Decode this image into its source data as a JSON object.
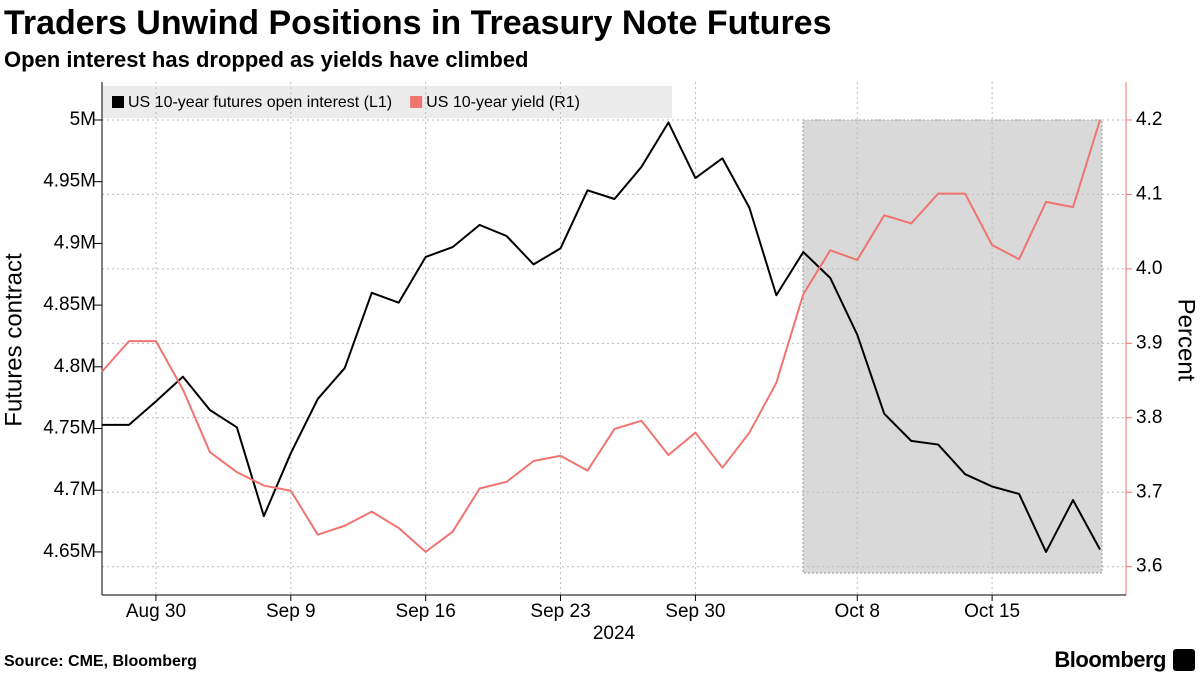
{
  "chart_data": {
    "type": "line",
    "title": "Traders Unwind Positions in Treasury Note Futures",
    "subtitle": "Open interest has dropped as yields have climbed",
    "source": "Source: CME, Bloomberg",
    "brand": "Bloomberg",
    "xlabel": "2024",
    "ylabel": "Futures contract",
    "y2label": "Percent",
    "categories": [
      null,
      null,
      "Aug 30",
      null,
      null,
      null,
      null,
      "Sep 9",
      null,
      null,
      null,
      null,
      "Sep 16",
      null,
      null,
      null,
      null,
      "Sep 23",
      null,
      null,
      null,
      null,
      "Sep 30",
      null,
      null,
      null,
      null,
      null,
      "Oct 8",
      null,
      null,
      null,
      null,
      "Oct 15",
      null,
      null,
      null,
      null
    ],
    "series": [
      {
        "name": "US 10-year futures open interest (L1)",
        "color": "#000000",
        "values": [
          4753000,
          4753000,
          4772000,
          4792000,
          4765000,
          4751000,
          4679000,
          4730000,
          4774000,
          4799000,
          4860000,
          4852000,
          4889000,
          4897000,
          4915000,
          4906000,
          4883000,
          4896000,
          4943000,
          4936000,
          4962000,
          4998000,
          4953000,
          4969000,
          4929000,
          4858000,
          4893000,
          4872000,
          4826000,
          4762000,
          4740000,
          4737000,
          4713000,
          4703000,
          4697000,
          4650000,
          4692000,
          4652000
        ]
      },
      {
        "name": "US 10-year yield (R1)",
        "color": "#f07470",
        "axis": "y2",
        "values": [
          3.862,
          3.903,
          3.903,
          3.838,
          3.754,
          3.727,
          3.709,
          3.702,
          3.643,
          3.655,
          3.674,
          3.652,
          3.62,
          3.647,
          3.705,
          3.714,
          3.742,
          3.749,
          3.729,
          3.785,
          3.796,
          3.75,
          3.78,
          3.733,
          3.78,
          3.847,
          3.966,
          4.025,
          4.012,
          4.072,
          4.061,
          4.101,
          4.101,
          4.032,
          4.013,
          4.09,
          4.083,
          4.2
        ]
      }
    ],
    "ylim": [
      4615100,
      5030800
    ],
    "yticks": [
      {
        "value": 4650000,
        "label": "4.65M"
      },
      {
        "value": 4700000,
        "label": "4.7M"
      },
      {
        "value": 4750000,
        "label": "4.75M"
      },
      {
        "value": 4800000,
        "label": "4.8M"
      },
      {
        "value": 4850000,
        "label": "4.85M"
      },
      {
        "value": 4900000,
        "label": "4.9M"
      },
      {
        "value": 4950000,
        "label": "4.95M"
      },
      {
        "value": 5000000,
        "label": "5M"
      }
    ],
    "y2lim": [
      3.562,
      4.251
    ],
    "y2ticks": [
      3.6,
      3.7,
      3.8,
      3.9,
      {
        "value": 4.0,
        "label": "4.0"
      },
      4.1,
      4.2
    ],
    "y2color": "#f07470",
    "grid": true
  }
}
